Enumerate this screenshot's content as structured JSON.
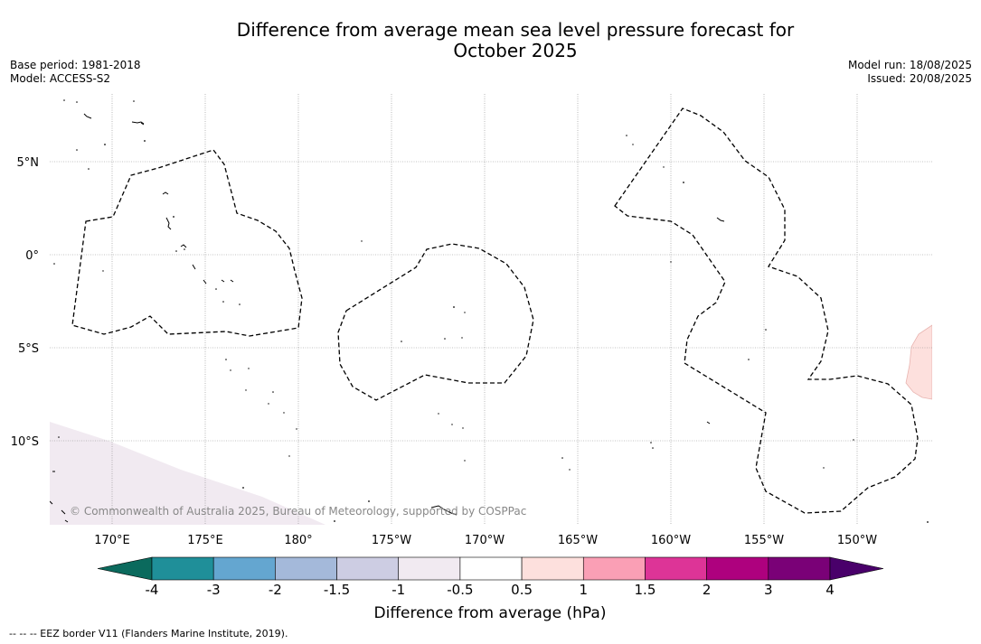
{
  "title_line1": "Difference from average mean sea level pressure forecast for",
  "title_line2": "October 2025",
  "meta_left": {
    "base_period": "Base period: 1981-2018",
    "model": "Model: ACCESS-S2"
  },
  "meta_right": {
    "model_run": "Model run: 18/08/2025",
    "issued": "Issued: 20/08/2025"
  },
  "credit": "© Commonwealth of Australia 2025, Bureau of Meteorology, supported by COSPPac",
  "footer_note": "--  --  -- EEZ border V11 (Flanders Marine Institute, 2019).",
  "axes": {
    "lon_labels": [
      "170°E",
      "175°E",
      "180°",
      "175°W",
      "170°W",
      "165°W",
      "160°W",
      "155°W",
      "150°W"
    ],
    "lat_labels": [
      "5°N",
      "0°",
      "5°S",
      "10°S"
    ]
  },
  "colorbar": {
    "title": "Difference from average (hPa)",
    "tick_labels": [
      "-4",
      "-3",
      "-2",
      "-1.5",
      "-1",
      "-0.5",
      "0.5",
      "1",
      "1.5",
      "2",
      "3",
      "4"
    ],
    "colors": {
      "extend_low": "#0b6a5d",
      "bins": [
        "#1f8f99",
        "#64a6d0",
        "#a4b9da",
        "#cdcde3",
        "#f1eaf1",
        "#ffffff",
        "#fde0dd",
        "#fa9fb5",
        "#dd3497",
        "#ae017e",
        "#7a0177"
      ],
      "extend_high": "#49006a"
    }
  },
  "map_fills": {
    "negative_shade": "#f1eaf1",
    "positive_shade": "#fde0dd"
  }
}
